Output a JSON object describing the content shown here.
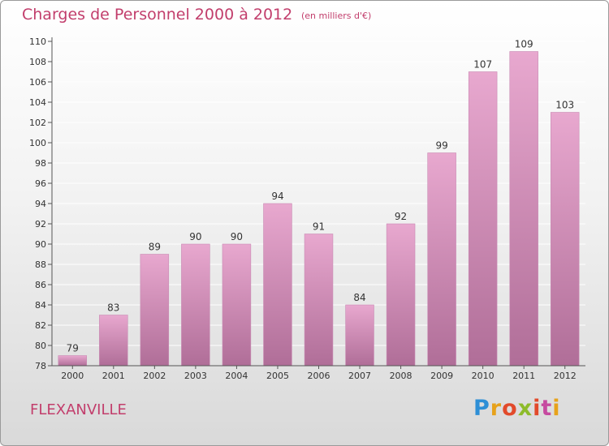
{
  "title": "Charges de Personnel 2000 à 2012",
  "subtitle": "(en milliers d'€)",
  "city": "FLEXANVILLE",
  "logo": {
    "text": "Proxiti"
  },
  "colors": {
    "title": "#c23e6c",
    "bar_top": "#e8a8cf",
    "bar_bottom": "#b06e98",
    "grid": "#ffffff"
  },
  "chart_data": {
    "type": "bar",
    "title": "Charges de Personnel 2000 à 2012",
    "subtitle": "(en milliers d'€)",
    "categories": [
      "2000",
      "2001",
      "2002",
      "2003",
      "2004",
      "2005",
      "2006",
      "2007",
      "2008",
      "2009",
      "2010",
      "2011",
      "2012"
    ],
    "values": [
      79,
      83,
      89,
      90,
      90,
      94,
      91,
      84,
      92,
      99,
      107,
      109,
      103
    ],
    "ylim": [
      78,
      110
    ],
    "yticks": [
      78,
      80,
      82,
      84,
      86,
      88,
      90,
      92,
      94,
      96,
      98,
      100,
      102,
      104,
      106,
      108,
      110
    ],
    "grid": true,
    "data_labels": true
  }
}
